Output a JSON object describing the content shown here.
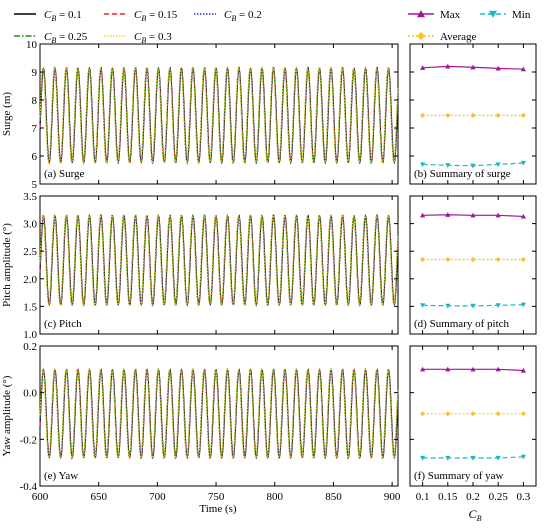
{
  "legend": {
    "left": [
      {
        "name": "C_B = 0.1",
        "sub": "B",
        "val": "= 0.1",
        "color": "#000000",
        "dash": ""
      },
      {
        "name": "C_B = 0.15",
        "sub": "B",
        "val": "= 0.15",
        "color": "#e8251f",
        "dash": "5,3"
      },
      {
        "name": "C_B = 0.2",
        "sub": "B",
        "val": "= 0.2",
        "color": "#2233cc",
        "dash": "1.5,1.5"
      },
      {
        "name": "C_B = 0.25",
        "sub": "B",
        "val": "= 0.25",
        "color": "#1e8a1e",
        "dash": "6,2,1.5,2"
      },
      {
        "name": "C_B = 0.3",
        "sub": "B",
        "val": "= 0.3",
        "color": "#ffd21a",
        "dash": "1.5,1.5"
      }
    ],
    "right": [
      {
        "name": "Max",
        "color": "#a0179e",
        "marker": "triangle-up",
        "dash": ""
      },
      {
        "name": "Min",
        "color": "#1bb8c4",
        "marker": "triangle-down",
        "dash": "5,3"
      },
      {
        "name": "Average",
        "color": "#ffc125",
        "marker": "diamond",
        "dash": "2,2"
      }
    ]
  },
  "labels": {
    "xlabel": "Time (s)",
    "xlabel_right_main": "C",
    "xlabel_right_sub": "B"
  },
  "chart_data": [
    {
      "type": "line",
      "panel": "(a) Surge",
      "ylabel": "Surge (m)",
      "xlim": [
        600,
        905
      ],
      "ylim": [
        5,
        10
      ],
      "xticks": [
        600,
        650,
        700,
        750,
        800,
        850,
        900
      ],
      "yticks": [
        5,
        6,
        7,
        8,
        9,
        10
      ],
      "oscillation": {
        "min": 5.75,
        "max": 9.15,
        "period": 9.8
      },
      "series_names": [
        "C_B = 0.1",
        "C_B = 0.15",
        "C_B = 0.2",
        "C_B = 0.25",
        "C_B = 0.3"
      ]
    },
    {
      "type": "line",
      "panel": "(b) Summary of surge",
      "x": [
        0.1,
        0.15,
        0.2,
        0.25,
        0.3
      ],
      "xlim": [
        0.075,
        0.325
      ],
      "ylim": [
        5,
        10
      ],
      "series": [
        {
          "name": "Max",
          "values": [
            9.15,
            9.2,
            9.17,
            9.13,
            9.1
          ]
        },
        {
          "name": "Min",
          "values": [
            5.7,
            5.67,
            5.65,
            5.7,
            5.75
          ]
        },
        {
          "name": "Average",
          "values": [
            7.45,
            7.45,
            7.45,
            7.45,
            7.45
          ]
        }
      ]
    },
    {
      "type": "line",
      "panel": "(c) Pitch",
      "ylabel": "Pitch amplitude (°)",
      "xlim": [
        600,
        905
      ],
      "ylim": [
        1.0,
        3.5
      ],
      "xticks": [
        600,
        650,
        700,
        750,
        800,
        850,
        900
      ],
      "yticks": [
        1.0,
        1.5,
        2.0,
        2.5,
        3.0,
        3.5
      ],
      "oscillation": {
        "min": 1.52,
        "max": 3.15,
        "period": 9.8
      },
      "series_names": [
        "C_B = 0.1",
        "C_B = 0.15",
        "C_B = 0.2",
        "C_B = 0.25",
        "C_B = 0.3"
      ]
    },
    {
      "type": "line",
      "panel": "(d) Summary of pitch",
      "x": [
        0.1,
        0.15,
        0.2,
        0.25,
        0.3
      ],
      "xlim": [
        0.075,
        0.325
      ],
      "ylim": [
        1.0,
        3.5
      ],
      "series": [
        {
          "name": "Max",
          "values": [
            3.15,
            3.16,
            3.15,
            3.15,
            3.13
          ]
        },
        {
          "name": "Min",
          "values": [
            1.52,
            1.51,
            1.51,
            1.52,
            1.53
          ]
        },
        {
          "name": "Average",
          "values": [
            2.35,
            2.35,
            2.35,
            2.35,
            2.35
          ]
        }
      ]
    },
    {
      "type": "line",
      "panel": "(e) Yaw",
      "ylabel": "Yaw amplitude (°)",
      "xlim": [
        600,
        905
      ],
      "ylim": [
        -0.4,
        0.2
      ],
      "xticks": [
        600,
        650,
        700,
        750,
        800,
        850,
        900
      ],
      "yticks": [
        -0.4,
        -0.2,
        0.0,
        0.2
      ],
      "oscillation": {
        "min": -0.28,
        "max": 0.1,
        "period": 9.8
      },
      "series_names": [
        "C_B = 0.1",
        "C_B = 0.15",
        "C_B = 0.2",
        "C_B = 0.25",
        "C_B = 0.3"
      ]
    },
    {
      "type": "line",
      "panel": "(f) Summary of yaw",
      "x": [
        0.1,
        0.15,
        0.2,
        0.25,
        0.3
      ],
      "xlim": [
        0.075,
        0.325
      ],
      "ylim": [
        -0.4,
        0.2
      ],
      "xticks": [
        0.1,
        0.15,
        0.2,
        0.25,
        0.3
      ],
      "xticklabels": [
        "0.1",
        "0.15",
        "0.2",
        "0.25",
        "0.3"
      ],
      "series": [
        {
          "name": "Max",
          "values": [
            0.1,
            0.1,
            0.1,
            0.1,
            0.095
          ]
        },
        {
          "name": "Min",
          "values": [
            -0.28,
            -0.28,
            -0.28,
            -0.28,
            -0.275
          ]
        },
        {
          "name": "Average",
          "values": [
            -0.09,
            -0.09,
            -0.09,
            -0.09,
            -0.09
          ]
        }
      ]
    }
  ]
}
